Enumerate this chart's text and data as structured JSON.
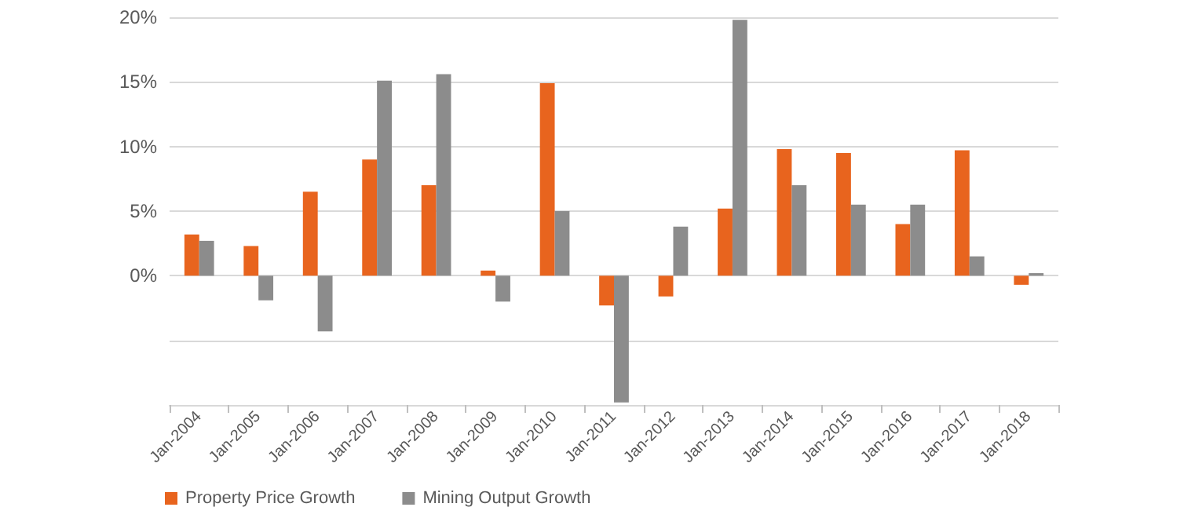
{
  "chart_data": {
    "type": "bar",
    "categories": [
      "Jan-2004",
      "Jan-2005",
      "Jan-2006",
      "Jan-2007",
      "Jan-2008",
      "Jan-2009",
      "Jan-2010",
      "Jan-2011",
      "Jan-2012",
      "Jan-2013",
      "Jan-2014",
      "Jan-2015",
      "Jan-2016",
      "Jan-2017",
      "Jan-2018"
    ],
    "series": [
      {
        "name": "Property Price Growth",
        "color": "#e8641e",
        "values": [
          3.2,
          2.3,
          6.5,
          9.0,
          7.0,
          0.4,
          14.9,
          -2.3,
          -1.6,
          5.2,
          9.8,
          9.5,
          4.0,
          9.7,
          -0.7
        ]
      },
      {
        "name": "Mining Output Growth",
        "color": "#8c8c8c",
        "values": [
          2.7,
          -1.9,
          -4.3,
          15.1,
          15.6,
          -2.0,
          5.0,
          -9.8,
          3.8,
          19.8,
          7.0,
          5.5,
          5.5,
          1.5,
          0.2
        ]
      }
    ],
    "ylim": [
      -10,
      20
    ],
    "yticks": [
      {
        "value": -10,
        "label": null
      },
      {
        "value": -5,
        "label": null
      },
      {
        "value": 0,
        "label": "0%"
      },
      {
        "value": 5,
        "label": "5%"
      },
      {
        "value": 10,
        "label": "10%"
      },
      {
        "value": 15,
        "label": "15%"
      },
      {
        "value": 20,
        "label": "20%"
      }
    ],
    "grid": "y",
    "legend": "bottom left"
  }
}
